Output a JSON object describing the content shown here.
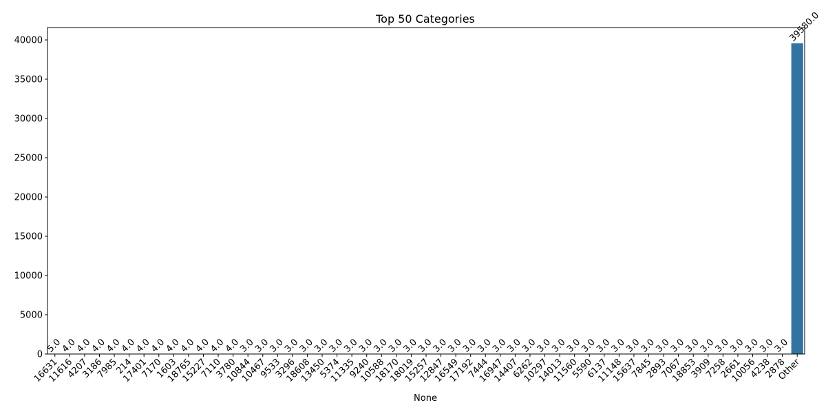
{
  "chart_data": {
    "type": "bar",
    "title": "Top 50 Categories",
    "xlabel": "None",
    "ylabel": "",
    "ylim": [
      0,
      41580
    ],
    "yticks": [
      0,
      5000,
      10000,
      15000,
      20000,
      25000,
      30000,
      35000,
      40000
    ],
    "grid": false,
    "bar_color": "#3274a1",
    "categories": [
      "16631",
      "11616",
      "4207",
      "3186",
      "7985",
      "214",
      "17401",
      "7170",
      "1603",
      "18765",
      "15227",
      "7110",
      "3780",
      "10844",
      "10467",
      "9533",
      "3296",
      "18608",
      "13450",
      "5374",
      "11335",
      "9240",
      "10588",
      "18170",
      "18019",
      "15257",
      "12847",
      "16549",
      "17192",
      "7444",
      "16947",
      "14407",
      "6262",
      "10297",
      "14013",
      "11560",
      "5590",
      "6137",
      "11148",
      "15637",
      "7845",
      "2893",
      "7067",
      "18853",
      "3909",
      "7258",
      "2661",
      "10056",
      "4238",
      "2878",
      "Other"
    ],
    "values": [
      5,
      4,
      4,
      4,
      4,
      4,
      4,
      4,
      4,
      4,
      4,
      4,
      4,
      3,
      3,
      3,
      3,
      3,
      3,
      3,
      3,
      3,
      3,
      3,
      3,
      3,
      3,
      3,
      3,
      3,
      3,
      3,
      3,
      3,
      3,
      3,
      3,
      3,
      3,
      3,
      3,
      3,
      3,
      3,
      3,
      3,
      3,
      3,
      3,
      3,
      39580
    ],
    "data_labels": [
      "5.0",
      "4.0",
      "4.0",
      "4.0",
      "4.0",
      "4.0",
      "4.0",
      "4.0",
      "4.0",
      "4.0",
      "4.0",
      "4.0",
      "4.0",
      "3.0",
      "3.0",
      "3.0",
      "3.0",
      "3.0",
      "3.0",
      "3.0",
      "3.0",
      "3.0",
      "3.0",
      "3.0",
      "3.0",
      "3.0",
      "3.0",
      "3.0",
      "3.0",
      "3.0",
      "3.0",
      "3.0",
      "3.0",
      "3.0",
      "3.0",
      "3.0",
      "3.0",
      "3.0",
      "3.0",
      "3.0",
      "3.0",
      "3.0",
      "3.0",
      "3.0",
      "3.0",
      "3.0",
      "3.0",
      "3.0",
      "3.0",
      "3.0",
      "39580.0"
    ]
  }
}
